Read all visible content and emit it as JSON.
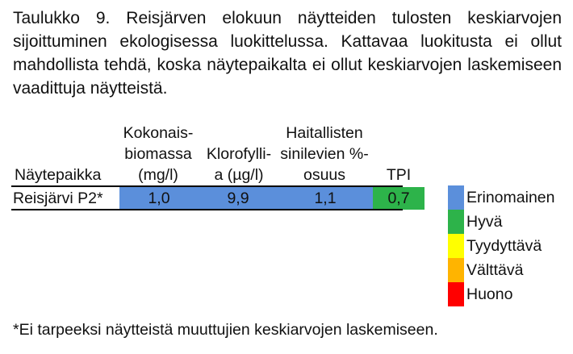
{
  "caption": {
    "text": "Taulukko 9. Reisjärven elokuun näytteiden tulosten keskiarvojen sijoittuminen ekologisessa luokittelussa. Kattavaa luokitusta ei ollut mahdollista tehdä, koska näytepaikalta ei ollut keskiarvojen laskemiseen vaadittuja näytteistä."
  },
  "table": {
    "headers": {
      "site": "Näytepaikka",
      "biomass_l1": "Kokonais-",
      "biomass_l2": "biomassa",
      "biomass_l3": "(mg/l)",
      "chl_l1": "Klorofylli-",
      "chl_l2": "a (µg/l)",
      "cyano_l1": "Haitallisten",
      "cyano_l2": "sinilevien %-",
      "cyano_l3": "osuus",
      "tpi": "TPI"
    },
    "row": {
      "site": "Reisjärvi P2*",
      "biomass": "1,0",
      "chlorophyll": "9,9",
      "cyano": "1,1",
      "tpi": "0,7"
    },
    "cell_colors": {
      "biomass": "#5b8fdb",
      "chlorophyll": "#5b8fdb",
      "cyano": "#5b8fdb",
      "tpi": "#2db34a"
    }
  },
  "legend": [
    {
      "label": "Erinomainen",
      "color": "#5b8fdb"
    },
    {
      "label": "Hyvä",
      "color": "#2db34a"
    },
    {
      "label": "Tyydyttävä",
      "color": "#ffff00"
    },
    {
      "label": "Välttävä",
      "color": "#ffb400"
    },
    {
      "label": "Huono",
      "color": "#ff0000"
    }
  ],
  "footnote": "*Ei tarpeeksi näytteistä muuttujien keskiarvojen laskemiseen."
}
